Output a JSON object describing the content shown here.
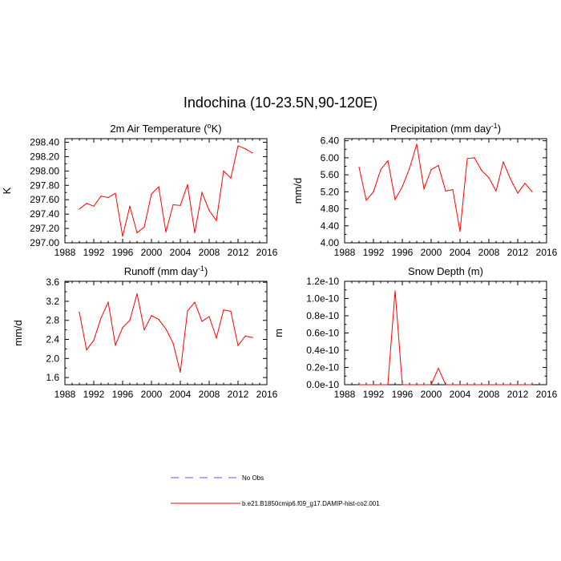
{
  "figure_title": "Indochina (10-23.5N,90-120E)",
  "chart_data": [
    {
      "type": "line",
      "title": "2m Air Temperature (",
      "title_unit_sup": "o",
      "title_suffix": "K)",
      "ylabel": "K",
      "xlabel": "",
      "xlim": [
        1988,
        2016
      ],
      "ylim": [
        297.0,
        298.45
      ],
      "xticks": [
        1988,
        1992,
        1996,
        2000,
        2004,
        2008,
        2012,
        2016
      ],
      "yticks": [
        297.0,
        297.2,
        297.4,
        297.6,
        297.8,
        298.0,
        298.2,
        298.4
      ],
      "ytick_labels": [
        "297.00",
        "297.20",
        "297.40",
        "297.60",
        "297.80",
        "298.00",
        "298.20",
        "298.40"
      ],
      "series": [
        {
          "name": "b.e21.B1850cmip6.f09_g17.DAMIP-hist-co2.001",
          "color": "#ff0000",
          "x": [
            1990,
            1991,
            1992,
            1993,
            1994,
            1995,
            1996,
            1997,
            1998,
            1999,
            2000,
            2001,
            2002,
            2003,
            2004,
            2005,
            2006,
            2007,
            2008,
            2009,
            2010,
            2011,
            2012,
            2013,
            2014
          ],
          "values": [
            297.47,
            297.55,
            297.51,
            297.65,
            297.63,
            297.69,
            297.09,
            297.51,
            297.14,
            297.22,
            297.68,
            297.78,
            297.15,
            297.53,
            297.52,
            297.81,
            297.14,
            297.7,
            297.45,
            297.31,
            298.0,
            297.9,
            298.35,
            298.31,
            298.25
          ]
        }
      ]
    },
    {
      "type": "line",
      "title": "Precipitation (mm day",
      "title_unit_sup": "-1",
      "title_suffix": ")",
      "ylabel": "mm/d",
      "xlabel": "",
      "xlim": [
        1988,
        2016
      ],
      "ylim": [
        4.0,
        6.45
      ],
      "xticks": [
        1988,
        1992,
        1996,
        2000,
        2004,
        2008,
        2012,
        2016
      ],
      "yticks": [
        4.0,
        4.4,
        4.8,
        5.2,
        5.6,
        6.0,
        6.4
      ],
      "ytick_labels": [
        "4.00",
        "4.40",
        "4.80",
        "5.20",
        "5.60",
        "6.00",
        "6.40"
      ],
      "series": [
        {
          "name": "b.e21.B1850cmip6.f09_g17.DAMIP-hist-co2.001",
          "color": "#ff0000",
          "x": [
            1990,
            1991,
            1992,
            1993,
            1994,
            1995,
            1996,
            1997,
            1998,
            1999,
            2000,
            2001,
            2002,
            2003,
            2004,
            2005,
            2006,
            2007,
            2008,
            2009,
            2010,
            2011,
            2012,
            2013,
            2014
          ],
          "values": [
            5.78,
            5.0,
            5.2,
            5.72,
            5.93,
            5.02,
            5.32,
            5.75,
            6.32,
            5.27,
            5.72,
            5.82,
            5.22,
            5.25,
            4.27,
            5.98,
            6.0,
            5.7,
            5.53,
            5.22,
            5.9,
            5.5,
            5.17,
            5.4,
            5.2
          ]
        }
      ]
    },
    {
      "type": "line",
      "title": "Runoff (mm day",
      "title_unit_sup": "-1",
      "title_suffix": ")",
      "ylabel": "mm/d",
      "xlabel": "",
      "xlim": [
        1988,
        2016
      ],
      "ylim": [
        1.45,
        3.62
      ],
      "xticks": [
        1988,
        1992,
        1996,
        2000,
        2004,
        2008,
        2012,
        2016
      ],
      "yticks": [
        1.6,
        2.0,
        2.4,
        2.8,
        3.2,
        3.6
      ],
      "ytick_labels": [
        "1.6",
        "2.0",
        "2.4",
        "2.8",
        "3.2",
        "3.6"
      ],
      "series": [
        {
          "name": "b.e21.B1850cmip6.f09_g17.DAMIP-hist-co2.001",
          "color": "#ff0000",
          "x": [
            1990,
            1991,
            1992,
            1993,
            1994,
            1995,
            1996,
            1997,
            1998,
            1999,
            2000,
            2001,
            2002,
            2003,
            2004,
            2005,
            2006,
            2007,
            2008,
            2009,
            2010,
            2011,
            2012,
            2013,
            2014
          ],
          "values": [
            2.97,
            2.18,
            2.38,
            2.85,
            3.18,
            2.28,
            2.65,
            2.8,
            3.36,
            2.6,
            2.9,
            2.82,
            2.62,
            2.32,
            1.71,
            3.0,
            3.18,
            2.78,
            2.88,
            2.43,
            3.02,
            2.99,
            2.27,
            2.47,
            2.44
          ]
        }
      ]
    },
    {
      "type": "line",
      "title": "Snow Depth (m)",
      "title_unit_sup": "",
      "title_suffix": "",
      "ylabel": "m",
      "xlabel": "",
      "xlim": [
        1988,
        2016
      ],
      "ylim": [
        0.0,
        1.2e-10
      ],
      "xticks": [
        1988,
        1992,
        1996,
        2000,
        2004,
        2008,
        2012,
        2016
      ],
      "yticks": [
        0.0,
        2e-11,
        4e-11,
        6e-11,
        8e-11,
        1e-10,
        1.2e-10
      ],
      "ytick_labels": [
        "0.0e-10",
        "0.2e-10",
        "0.4e-10",
        "0.6e-10",
        "0.8e-10",
        "1.0e-10",
        "1.2e-10"
      ],
      "series": [
        {
          "name": "b.e21.B1850cmip6.f09_g17.DAMIP-hist-co2.001",
          "color": "#ff0000",
          "x": [
            1990,
            1991,
            1992,
            1993,
            1994,
            1995,
            1996,
            1997,
            1998,
            1999,
            2000,
            2001,
            2002,
            2003,
            2004,
            2005,
            2006,
            2007,
            2008,
            2009,
            2010,
            2011,
            2012,
            2013,
            2014
          ],
          "values": [
            0,
            0,
            0,
            0,
            0,
            1.09e-10,
            0,
            0,
            0,
            0,
            0,
            1.9e-11,
            0,
            0,
            0,
            0,
            0,
            0,
            0,
            0,
            0,
            0,
            0,
            0,
            0
          ]
        }
      ]
    }
  ],
  "legend": {
    "items": [
      {
        "label": "No Obs",
        "color": "#5b5bff",
        "style": "dashed"
      },
      {
        "label": "b.e21.B1850cmip6.f09_g17.DAMIP-hist-co2.001",
        "color": "#ff0000",
        "style": "solid"
      }
    ]
  }
}
